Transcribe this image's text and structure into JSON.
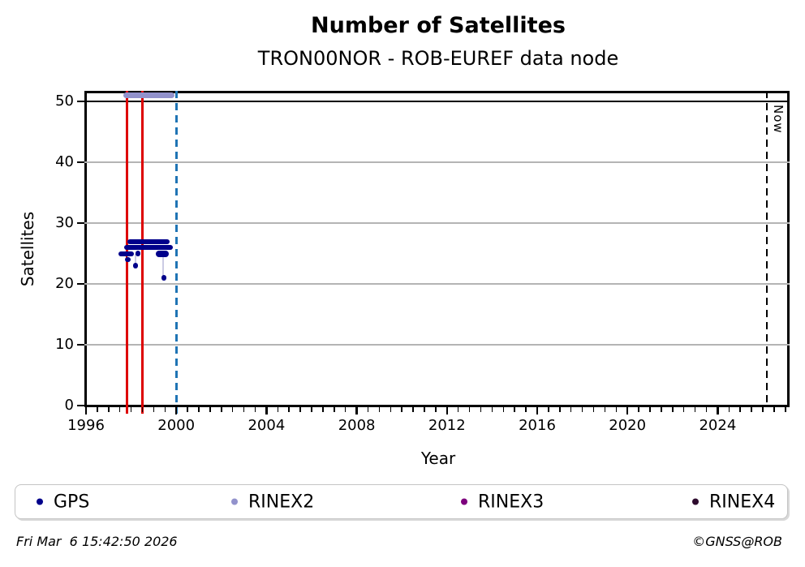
{
  "title": "Number of Satellites",
  "subtitle": "TRON00NOR - ROB-EUREF data node",
  "now_label": "Now",
  "footer": {
    "timestamp": "Fri Mar  6 15:42:50 2026",
    "credit": "©GNSS@ROB"
  },
  "colors": {
    "gps": "#00008b",
    "rinex2": "#9292cc",
    "rinex3": "#7d007d",
    "rinex4": "#2e0b2e",
    "event_line_red": "#dd0000",
    "event_line_blue": "#1f74b4",
    "now_line": "#000000",
    "grid": "#b4b4b4"
  },
  "chart_data": {
    "type": "scatter",
    "title": "Number of Satellites",
    "subtitle": "TRON00NOR - ROB-EUREF data node",
    "xlabel": "Year",
    "ylabel": "Satellites",
    "xlim": [
      1996,
      2027.2
    ],
    "ylim": [
      0,
      51.7
    ],
    "x_major_ticks": [
      1996,
      2000,
      2004,
      2008,
      2012,
      2016,
      2020,
      2024
    ],
    "x_minor_step": 0.5,
    "y_ticks": [
      0,
      10,
      20,
      30,
      40,
      50
    ],
    "grid": "horizontal-only",
    "legend_position": "bottom",
    "legend": [
      {
        "label": "GPS",
        "color": "#00008b"
      },
      {
        "label": "RINEX2",
        "color": "#9292cc"
      },
      {
        "label": "RINEX3",
        "color": "#7d007d"
      },
      {
        "label": "RINEX4",
        "color": "#2e0b2e"
      }
    ],
    "hlines": [
      {
        "y": 50,
        "color": "#000000",
        "style": "solid"
      }
    ],
    "vlines": [
      {
        "x": 1997.8,
        "color": "#dd0000",
        "style": "solid",
        "label": ""
      },
      {
        "x": 1998.5,
        "color": "#dd0000",
        "style": "solid",
        "label": ""
      },
      {
        "x": 2000.0,
        "color": "#1f74b4",
        "style": "dashed",
        "label": ""
      },
      {
        "x": 2026.18,
        "color": "#000000",
        "style": "dashed",
        "label": "Now"
      }
    ],
    "series": [
      {
        "name": "GPS",
        "color": "#00008b",
        "segments": [
          {
            "y": 27,
            "x0": 1997.95,
            "x1": 1999.6,
            "thickness": 6
          },
          {
            "y": 26,
            "x0": 1997.8,
            "x1": 1999.75,
            "thickness": 6
          },
          {
            "y": 25,
            "x0": 1997.55,
            "x1": 1998.0,
            "thickness": 6
          },
          {
            "y": 25,
            "x0": 1999.2,
            "x1": 1999.55,
            "thickness": 8
          }
        ],
        "points": [
          [
            1998.3,
            25
          ],
          [
            1997.85,
            24
          ],
          [
            1998.2,
            23
          ],
          [
            1999.45,
            21
          ]
        ],
        "drops": [
          {
            "x": 1997.85,
            "y0": 25,
            "y1": 24
          },
          {
            "x": 1998.2,
            "y0": 25,
            "y1": 23
          },
          {
            "x": 1999.42,
            "y0": 25,
            "y1": 21
          }
        ]
      },
      {
        "name": "RINEX2",
        "color": "#9292cc",
        "segments": [
          {
            "y": 51,
            "x0": 1997.75,
            "x1": 1999.8,
            "thickness": 7
          }
        ],
        "points": [],
        "drops": []
      },
      {
        "name": "RINEX3",
        "color": "#7d007d",
        "segments": [],
        "points": [],
        "drops": []
      },
      {
        "name": "RINEX4",
        "color": "#2e0b2e",
        "segments": [],
        "points": [],
        "drops": []
      }
    ]
  }
}
